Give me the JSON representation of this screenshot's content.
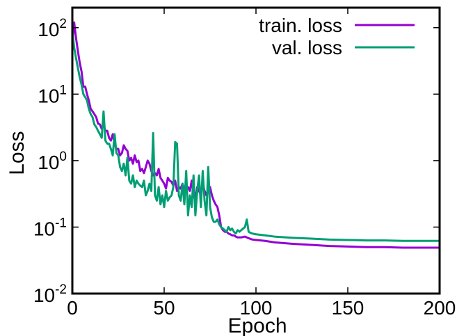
{
  "chart_data": {
    "type": "line",
    "xlabel": "Epoch",
    "ylabel": "Loss",
    "xlim": [
      0,
      200
    ],
    "ylim": [
      0.01,
      200
    ],
    "yscale": "log",
    "grid": false,
    "legend_position": "top-right",
    "xticks": [
      {
        "value": 0,
        "label": "0"
      },
      {
        "value": 50,
        "label": "50"
      },
      {
        "value": 100,
        "label": "100"
      },
      {
        "value": 150,
        "label": "150"
      },
      {
        "value": 200,
        "label": "200"
      }
    ],
    "yticks": [
      {
        "value": 100,
        "base": "10",
        "exp": "2"
      },
      {
        "value": 10,
        "base": "10",
        "exp": "1"
      },
      {
        "value": 1,
        "base": "10",
        "exp": "0"
      },
      {
        "value": 0.1,
        "base": "10",
        "exp": "-1"
      },
      {
        "value": 0.01,
        "base": "10",
        "exp": "-2"
      }
    ],
    "series": [
      {
        "name": "train. loss",
        "color": "#9400d3",
        "points": [
          [
            0,
            60
          ],
          [
            1,
            120
          ],
          [
            2,
            70
          ],
          [
            3,
            45
          ],
          [
            4,
            30
          ],
          [
            5,
            22
          ],
          [
            6,
            13
          ],
          [
            7,
            13
          ],
          [
            8,
            10
          ],
          [
            9,
            8
          ],
          [
            10,
            6
          ],
          [
            11,
            5.5
          ],
          [
            12,
            5
          ],
          [
            13,
            4.5
          ],
          [
            14,
            3.6
          ],
          [
            15,
            3.5
          ],
          [
            16,
            3.0
          ],
          [
            17,
            3.5
          ],
          [
            18,
            2.8
          ],
          [
            19,
            2.8
          ],
          [
            20,
            2.2
          ],
          [
            21,
            2.0
          ],
          [
            22,
            2.5
          ],
          [
            23,
            1.8
          ],
          [
            24,
            1.5
          ],
          [
            25,
            1.5
          ],
          [
            26,
            1.2
          ],
          [
            27,
            1.3
          ],
          [
            28,
            1.7
          ],
          [
            29,
            1.5
          ],
          [
            30,
            1.4
          ],
          [
            31,
            1.0
          ],
          [
            32,
            1.1
          ],
          [
            33,
            0.9
          ],
          [
            34,
            1.2
          ],
          [
            35,
            0.95
          ],
          [
            36,
            1.0
          ],
          [
            37,
            0.7
          ],
          [
            38,
            0.75
          ],
          [
            39,
            0.65
          ],
          [
            40,
            0.8
          ],
          [
            41,
            1.0
          ],
          [
            42,
            0.9
          ],
          [
            43,
            0.7
          ],
          [
            44,
            0.6
          ],
          [
            45,
            0.65
          ],
          [
            46,
            0.6
          ],
          [
            47,
            0.75
          ],
          [
            48,
            0.55
          ],
          [
            49,
            0.5
          ],
          [
            50,
            0.45
          ],
          [
            51,
            0.38
          ],
          [
            52,
            0.55
          ],
          [
            53,
            0.5
          ],
          [
            54,
            0.48
          ],
          [
            55,
            0.42
          ],
          [
            56,
            0.5
          ],
          [
            57,
            0.35
          ],
          [
            58,
            0.4
          ],
          [
            59,
            0.38
          ],
          [
            60,
            0.45
          ],
          [
            61,
            0.35
          ],
          [
            62,
            0.38
          ],
          [
            63,
            0.4
          ],
          [
            64,
            0.35
          ],
          [
            65,
            0.5
          ],
          [
            66,
            0.3
          ],
          [
            67,
            0.25
          ],
          [
            68,
            0.4
          ],
          [
            69,
            0.35
          ],
          [
            70,
            0.3
          ],
          [
            71,
            0.45
          ],
          [
            72,
            0.35
          ],
          [
            73,
            0.3
          ],
          [
            74,
            0.35
          ],
          [
            75,
            0.4
          ],
          [
            76,
            0.3
          ],
          [
            77,
            0.25
          ],
          [
            78,
            0.22
          ],
          [
            79,
            0.2
          ],
          [
            80,
            0.15
          ],
          [
            81,
            0.1
          ],
          [
            82,
            0.09
          ],
          [
            83,
            0.085
          ],
          [
            84,
            0.085
          ],
          [
            85,
            0.08
          ],
          [
            86,
            0.078
          ],
          [
            87,
            0.075
          ],
          [
            88,
            0.075
          ],
          [
            89,
            0.072
          ],
          [
            90,
            0.07
          ],
          [
            92,
            0.07
          ],
          [
            94,
            0.072
          ],
          [
            96,
            0.068
          ],
          [
            98,
            0.065
          ],
          [
            100,
            0.064
          ],
          [
            105,
            0.062
          ],
          [
            110,
            0.059
          ],
          [
            120,
            0.056
          ],
          [
            130,
            0.054
          ],
          [
            140,
            0.052
          ],
          [
            150,
            0.051
          ],
          [
            160,
            0.05
          ],
          [
            170,
            0.05
          ],
          [
            180,
            0.049
          ],
          [
            190,
            0.049
          ],
          [
            200,
            0.049
          ]
        ]
      },
      {
        "name": "val. loss",
        "color": "#009e73",
        "points": [
          [
            0,
            90
          ],
          [
            1,
            50
          ],
          [
            2,
            35
          ],
          [
            3,
            25
          ],
          [
            4,
            18
          ],
          [
            5,
            14
          ],
          [
            6,
            10
          ],
          [
            7,
            9
          ],
          [
            8,
            8
          ],
          [
            9,
            6
          ],
          [
            10,
            5
          ],
          [
            11,
            4.5
          ],
          [
            12,
            3.5
          ],
          [
            13,
            3.2
          ],
          [
            14,
            2.8
          ],
          [
            15,
            2.5
          ],
          [
            16,
            2.2
          ],
          [
            17,
            5.5
          ],
          [
            18,
            2.0
          ],
          [
            19,
            1.8
          ],
          [
            20,
            1.8
          ],
          [
            21,
            1.5
          ],
          [
            22,
            1.2
          ],
          [
            23,
            2.5
          ],
          [
            24,
            1.3
          ],
          [
            25,
            1.2
          ],
          [
            26,
            0.8
          ],
          [
            27,
            0.7
          ],
          [
            28,
            0.9
          ],
          [
            29,
            0.6
          ],
          [
            30,
            1.1
          ],
          [
            31,
            0.5
          ],
          [
            32,
            0.45
          ],
          [
            33,
            0.6
          ],
          [
            34,
            0.4
          ],
          [
            35,
            0.5
          ],
          [
            36,
            0.45
          ],
          [
            37,
            0.42
          ],
          [
            38,
            0.4
          ],
          [
            39,
            0.5
          ],
          [
            40,
            0.3
          ],
          [
            41,
            0.35
          ],
          [
            42,
            0.45
          ],
          [
            43,
            0.35
          ],
          [
            44,
            2.6
          ],
          [
            45,
            0.3
          ],
          [
            46,
            0.25
          ],
          [
            47,
            0.4
          ],
          [
            48,
            0.22
          ],
          [
            49,
            0.3
          ],
          [
            50,
            0.2
          ],
          [
            51,
            0.35
          ],
          [
            52,
            0.25
          ],
          [
            53,
            0.28
          ],
          [
            54,
            0.3
          ],
          [
            55,
            0.4
          ],
          [
            56,
            1.9
          ],
          [
            57,
            1.8
          ],
          [
            58,
            0.3
          ],
          [
            59,
            0.25
          ],
          [
            60,
            0.45
          ],
          [
            61,
            0.22
          ],
          [
            62,
            0.7
          ],
          [
            63,
            0.15
          ],
          [
            64,
            0.3
          ],
          [
            65,
            0.2
          ],
          [
            66,
            0.6
          ],
          [
            67,
            0.15
          ],
          [
            68,
            0.35
          ],
          [
            69,
            0.6
          ],
          [
            70,
            0.2
          ],
          [
            71,
            0.7
          ],
          [
            72,
            0.25
          ],
          [
            73,
            0.15
          ],
          [
            74,
            0.8
          ],
          [
            75,
            0.2
          ],
          [
            76,
            0.14
          ],
          [
            77,
            0.12
          ],
          [
            78,
            0.12
          ],
          [
            79,
            0.13
          ],
          [
            80,
            0.11
          ],
          [
            81,
            0.1
          ],
          [
            82,
            0.095
          ],
          [
            83,
            0.09
          ],
          [
            84,
            0.085
          ],
          [
            85,
            0.1
          ],
          [
            86,
            0.09
          ],
          [
            87,
            0.095
          ],
          [
            88,
            0.085
          ],
          [
            89,
            0.08
          ],
          [
            90,
            0.09
          ],
          [
            91,
            0.085
          ],
          [
            92,
            0.09
          ],
          [
            93,
            0.095
          ],
          [
            94,
            0.1
          ],
          [
            95,
            0.13
          ],
          [
            96,
            0.085
          ],
          [
            97,
            0.082
          ],
          [
            98,
            0.08
          ],
          [
            100,
            0.078
          ],
          [
            105,
            0.075
          ],
          [
            110,
            0.072
          ],
          [
            120,
            0.069
          ],
          [
            130,
            0.067
          ],
          [
            140,
            0.065
          ],
          [
            150,
            0.064
          ],
          [
            160,
            0.063
          ],
          [
            170,
            0.063
          ],
          [
            180,
            0.062
          ],
          [
            190,
            0.062
          ],
          [
            200,
            0.062
          ]
        ]
      }
    ]
  }
}
